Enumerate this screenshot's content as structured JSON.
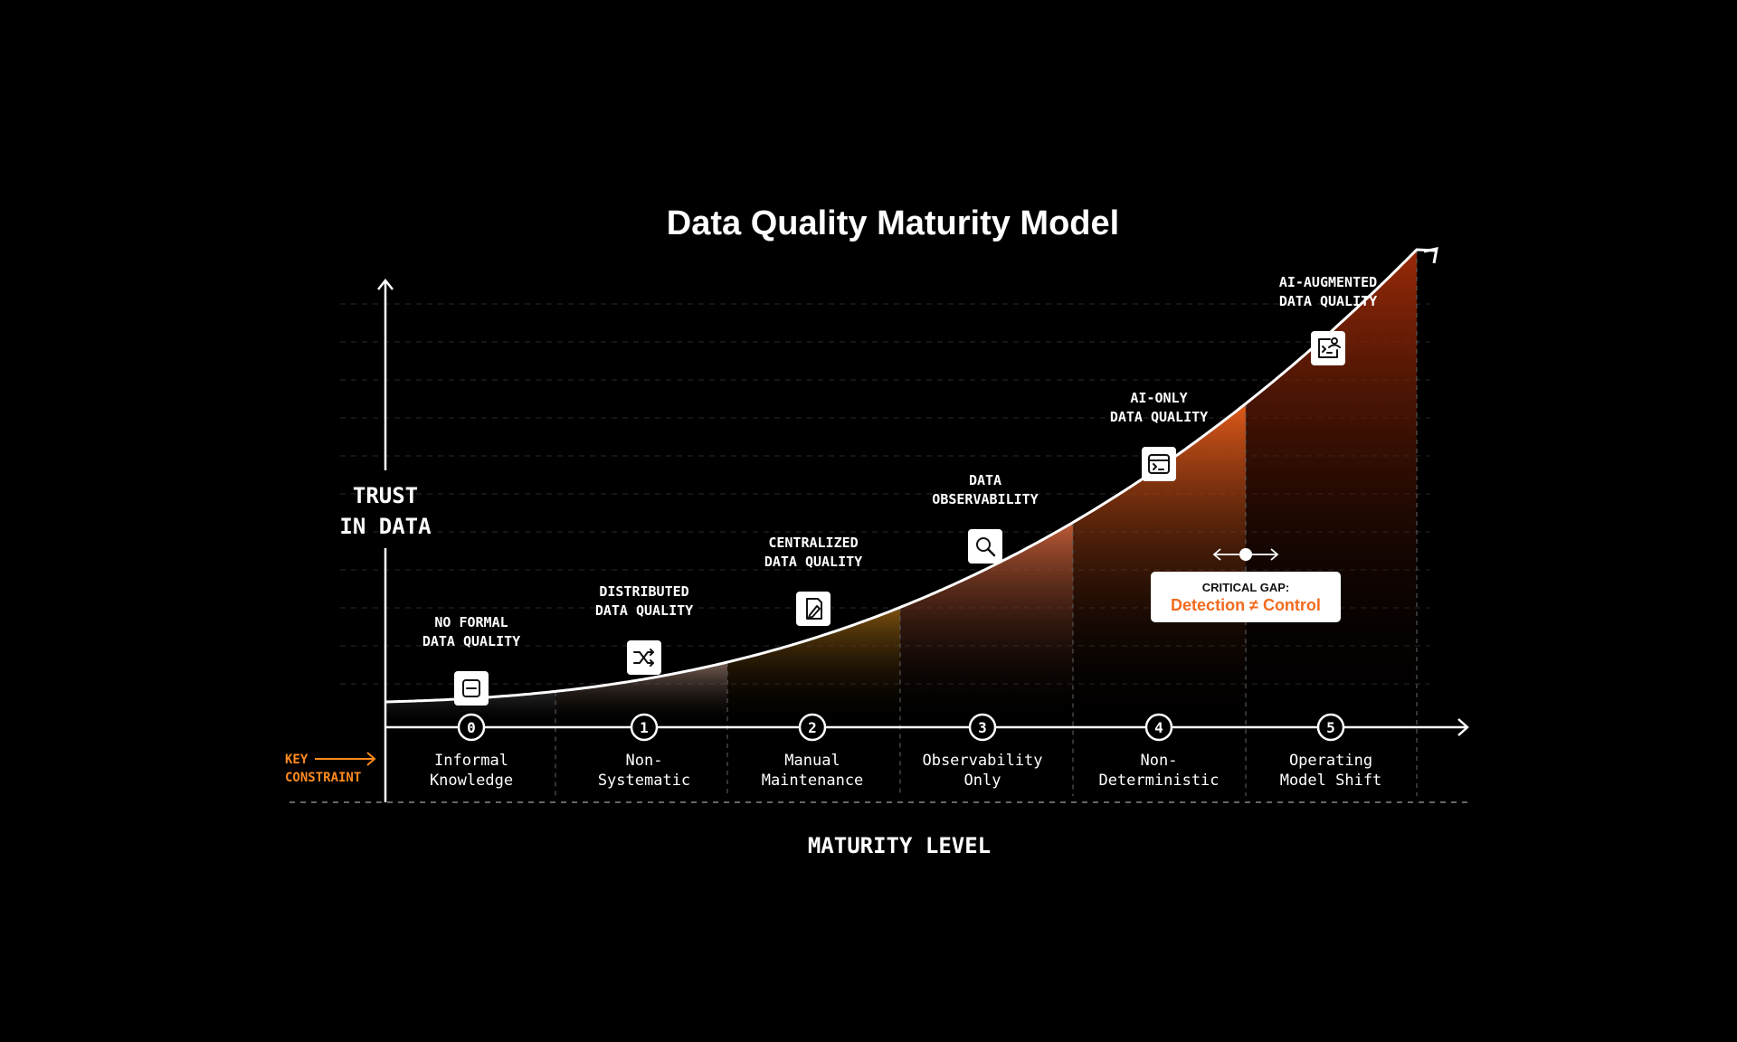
{
  "title": "Data Quality Maturity Model",
  "y_axis_label": [
    "TRUST",
    "IN DATA"
  ],
  "x_axis_label": "MATURITY LEVEL",
  "key_constraint_label": [
    "KEY",
    "CONSTRAINT"
  ],
  "critical_gap": {
    "heading": "CRITICAL GAP:",
    "text": "Detection ≠ Control"
  },
  "levels": [
    {
      "number": "0",
      "stage": [
        "NO FORMAL",
        "DATA QUALITY"
      ],
      "constraint": [
        "Informal",
        "Knowledge"
      ],
      "icon": "minus-box-icon"
    },
    {
      "number": "1",
      "stage": [
        "DISTRIBUTED",
        "DATA QUALITY"
      ],
      "constraint": [
        "Non-",
        "Systematic"
      ],
      "icon": "shuffle-icon"
    },
    {
      "number": "2",
      "stage": [
        "CENTRALIZED",
        "DATA QUALITY"
      ],
      "constraint": [
        "Manual",
        "Maintenance"
      ],
      "icon": "file-edit-icon"
    },
    {
      "number": "3",
      "stage": [
        "DATA",
        "OBSERVABILITY"
      ],
      "constraint": [
        "Observability",
        "Only"
      ],
      "icon": "search-icon"
    },
    {
      "number": "4",
      "stage": [
        "AI-ONLY",
        "DATA QUALITY"
      ],
      "constraint": [
        "Non-",
        "Deterministic"
      ],
      "icon": "terminal-window-icon"
    },
    {
      "number": "5",
      "stage": [
        "AI-AUGMENTED",
        "DATA QUALITY"
      ],
      "constraint": [
        "Operating",
        "Model Shift"
      ],
      "icon": "ai-chart-icon"
    }
  ],
  "colors": {
    "background": "#000000",
    "foreground": "#ffffff",
    "accent": "#ff8a1f",
    "accent_text": "#f26b1d",
    "fill_dark": "#7a2a0a",
    "fill_mid": "#d9561b",
    "fill_brown": "#8a5a10"
  }
}
